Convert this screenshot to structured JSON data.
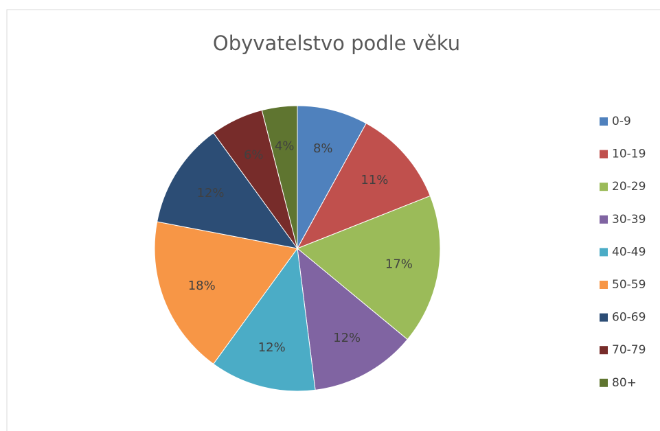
{
  "chart_data": {
    "type": "pie",
    "title": "Obyvatelstvo podle věku",
    "categories": [
      "0-9",
      "10-19",
      "20-29",
      "30-39",
      "40-49",
      "50-59",
      "60-69",
      "70-79",
      "80+"
    ],
    "values": [
      8,
      11,
      17,
      12,
      12,
      18,
      12,
      6,
      4
    ],
    "value_labels": [
      "8%",
      "11%",
      "17%",
      "12%",
      "12%",
      "18%",
      "12%",
      "6%",
      "4%"
    ],
    "colors": [
      "#4f81bd",
      "#c0504d",
      "#9bbb59",
      "#8064a2",
      "#4bacc6",
      "#f79646",
      "#2c4d75",
      "#772c2a",
      "#5f7530"
    ],
    "legend": "right"
  }
}
